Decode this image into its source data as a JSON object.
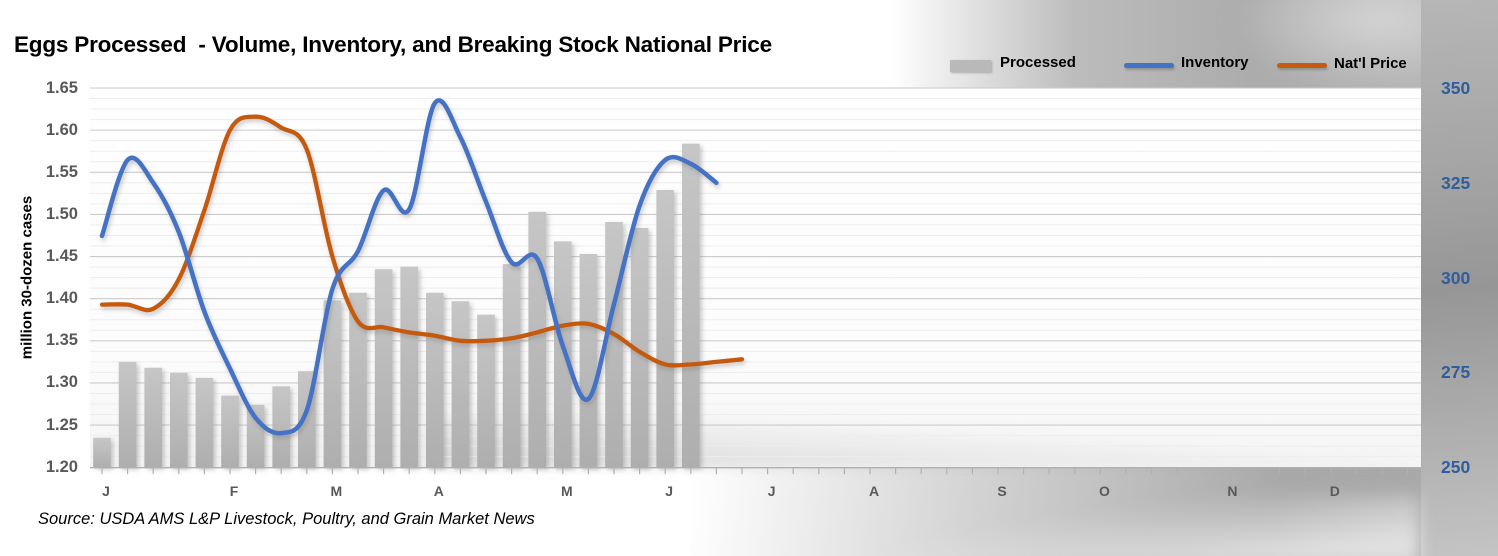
{
  "title": "Eggs Processed  - Volume, Inventory, and Breaking Stock National Price",
  "source_note": "Source: USDA AMS L&P Livestock, Poultry, and Grain Market News",
  "legend": {
    "processed": {
      "label": "Processed",
      "color": "#b9b9b9"
    },
    "inventory": {
      "label": "Inventory",
      "color": "#4472c4"
    },
    "natl_price": {
      "label": "Nat'l Price",
      "color": "#c55a11"
    }
  },
  "colors": {
    "bar_fill_top": "#c6c6c6",
    "bar_fill_bottom": "#aeaeae",
    "inventory_line": "#4472c4",
    "price_line": "#c55a11",
    "major_gridline": "#cbcbcb",
    "minor_gridline": "#ededed",
    "axis_line": "#b0b0b0",
    "left_tick_text": "#595959",
    "right_tick_text": "#2f5d9e",
    "month_text": "#595959"
  },
  "left_axis": {
    "title": "million 30-dozen cases",
    "tick_labels": [
      "1.65",
      "1.60",
      "1.55",
      "1.50",
      "1.45",
      "1.40",
      "1.35",
      "1.30",
      "1.25",
      "1.20"
    ],
    "min": 1.2,
    "max": 1.65,
    "major_step": 0.05,
    "minor_step": 0.0125
  },
  "right_axis": {
    "tick_labels": [
      "350",
      "325",
      "300",
      "275",
      "250"
    ],
    "min": 250,
    "max": 350,
    "major_step": 25
  },
  "x_axis": {
    "month_labels": [
      "J",
      "F",
      "M",
      "A",
      "M",
      "J",
      "J",
      "A",
      "S",
      "O",
      "N",
      "D"
    ],
    "month_start_weeks": [
      1,
      6,
      10,
      14,
      19,
      23,
      27,
      31,
      36,
      40,
      45,
      49
    ],
    "weeks_total": 52
  },
  "chart_data": {
    "type": "combo",
    "title": "Eggs Processed  - Volume, Inventory, and Breaking Stock National Price",
    "x_unit": "week (Jan through early Jul, weekly points)",
    "left_axis_label": "million 30-dozen cases",
    "left_range": [
      1.2,
      1.65
    ],
    "right_range": [
      250,
      350
    ],
    "grid": "horizontal major + faint minor",
    "legend_position": "top-right",
    "series": [
      {
        "name": "Processed",
        "type": "bar",
        "axis": "left",
        "values": [
          1.235,
          1.325,
          1.318,
          1.312,
          1.306,
          1.285,
          1.274,
          1.296,
          1.314,
          1.398,
          1.407,
          1.435,
          1.438,
          1.407,
          1.397,
          1.381,
          1.441,
          1.503,
          1.468,
          1.453,
          1.491,
          1.484,
          1.529,
          1.584
        ]
      },
      {
        "name": "Inventory",
        "type": "line",
        "axis": "right",
        "values": [
          311,
          331,
          325,
          312,
          291,
          276,
          263,
          259,
          265,
          297,
          307,
          323,
          318,
          346,
          337,
          320,
          304,
          305,
          282,
          268,
          293,
          319,
          331,
          330,
          325
        ]
      },
      {
        "name": "Nat'l Price",
        "type": "line",
        "axis": "left",
        "values": [
          1.393,
          1.393,
          1.388,
          1.423,
          1.505,
          1.6,
          1.616,
          1.603,
          1.577,
          1.45,
          1.373,
          1.366,
          1.36,
          1.356,
          1.35,
          1.35,
          1.353,
          1.36,
          1.368,
          1.37,
          1.358,
          1.337,
          1.322,
          1.322,
          1.325,
          1.328
        ]
      }
    ]
  }
}
